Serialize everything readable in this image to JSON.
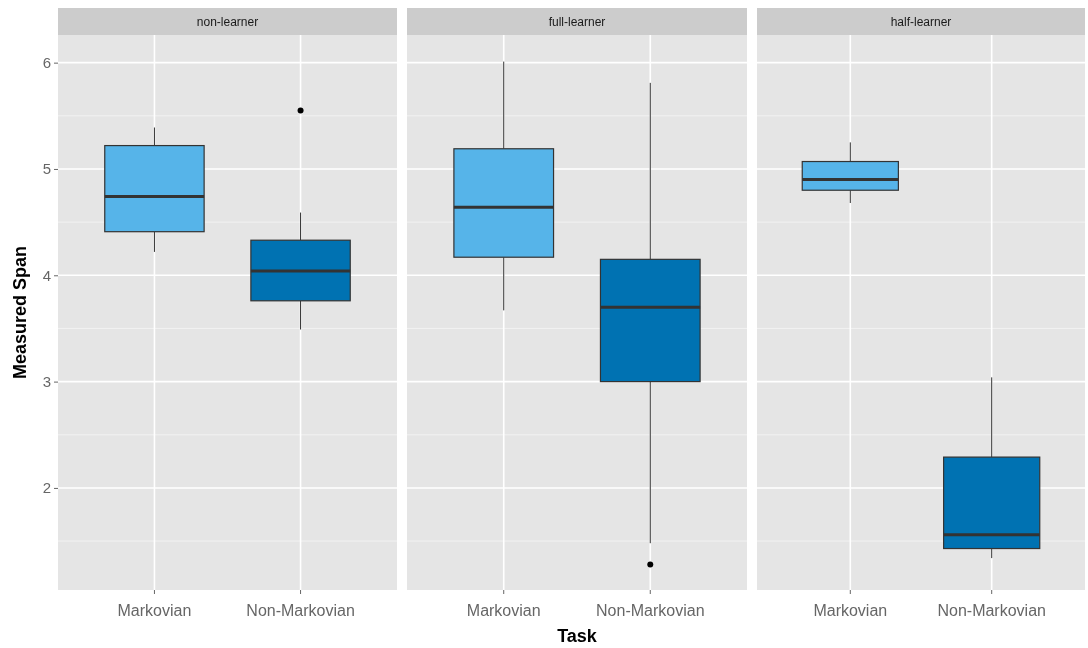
{
  "chart_data": [
    {
      "type": "box",
      "title": "non-learner",
      "ylabel": "Measured Span",
      "categories": [
        "Markovian",
        "Non-Markovian"
      ],
      "colors": [
        "#56b4e9",
        "#0072b2"
      ],
      "ylim": [
        1.04,
        6.26
      ],
      "yticks": [
        2,
        3,
        4,
        5,
        6
      ],
      "grid": true,
      "boxes": [
        {
          "low": 4.22,
          "q1": 4.41,
          "median": 4.74,
          "q3": 5.22,
          "high": 5.39
        },
        {
          "low": 3.49,
          "q1": 3.76,
          "median": 4.04,
          "q3": 4.33,
          "high": 4.59,
          "outliers": [
            5.55
          ]
        }
      ]
    },
    {
      "type": "box",
      "title": "full-learner",
      "xlabel": "Task",
      "categories": [
        "Markovian",
        "Non-Markovian"
      ],
      "colors": [
        "#56b4e9",
        "#0072b2"
      ],
      "ylim": [
        1.04,
        6.26
      ],
      "yticks": [
        2,
        3,
        4,
        5,
        6
      ],
      "grid": true,
      "tick_labels": "x",
      "boxes": [
        {
          "low": 3.67,
          "q1": 4.17,
          "median": 4.64,
          "q3": 5.19,
          "high": 6.01
        },
        {
          "low": 1.48,
          "q1": 3.0,
          "median": 3.7,
          "q3": 4.15,
          "high": 5.81,
          "outliers": [
            1.28
          ]
        }
      ]
    },
    {
      "type": "box",
      "title": "half-learner",
      "categories": [
        "Markovian",
        "Non-Markovian"
      ],
      "colors": [
        "#56b4e9",
        "#0072b2"
      ],
      "ylim": [
        1.04,
        6.26
      ],
      "yticks": [
        2,
        3,
        4,
        5,
        6
      ],
      "grid": true,
      "tick_labels": "x",
      "boxes": [
        {
          "low": 4.68,
          "q1": 4.8,
          "median": 4.9,
          "q3": 5.07,
          "high": 5.25
        },
        {
          "low": 1.34,
          "q1": 1.43,
          "median": 1.56,
          "q3": 2.29,
          "high": 3.04
        }
      ]
    }
  ]
}
